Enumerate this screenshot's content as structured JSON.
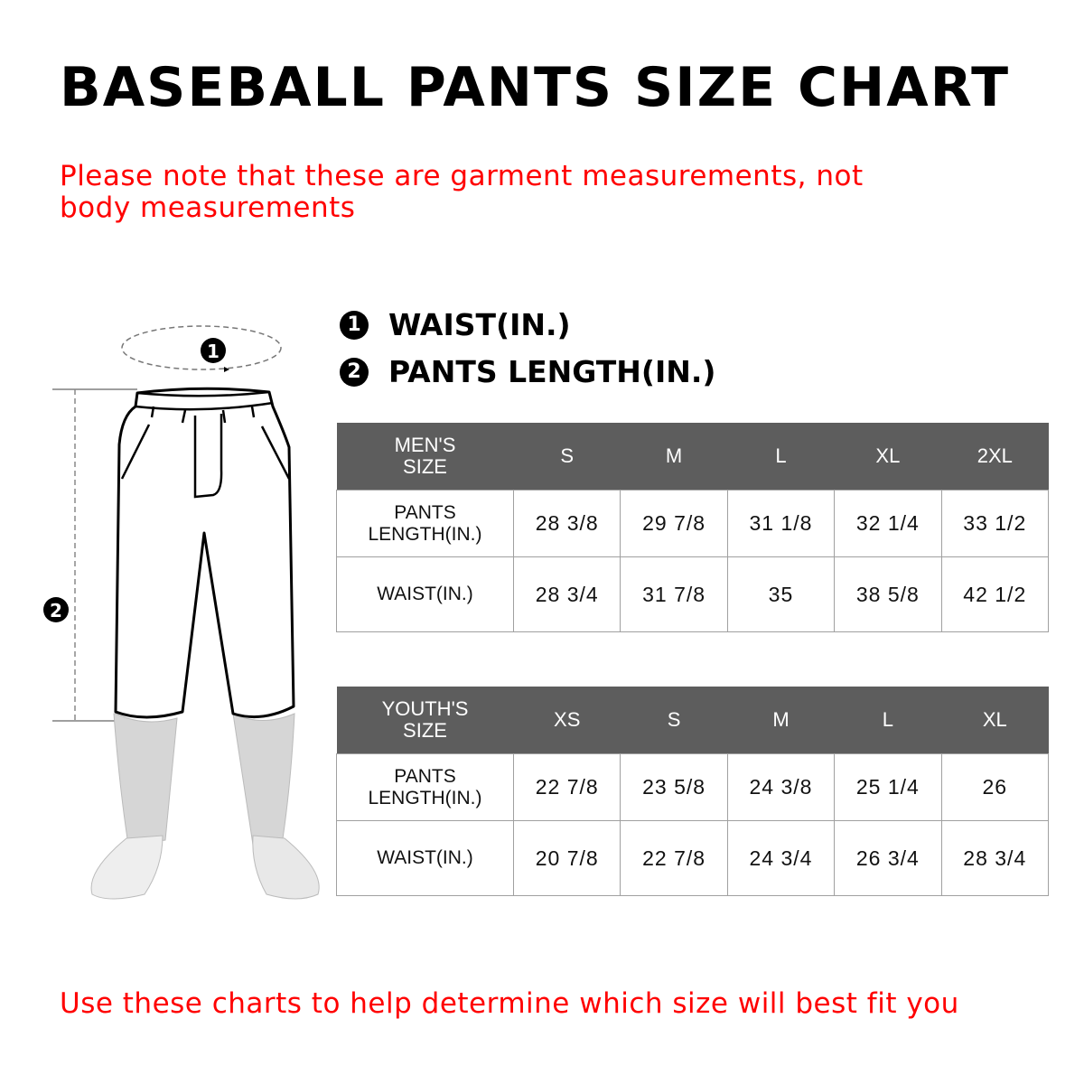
{
  "title": "BASEBALL PANTS SIZE CHART",
  "note_top": "Please note that these are garment measurements, not body measurements",
  "note_bottom": "Use these charts to help determine which size will best fit you",
  "legend": [
    {
      "number": "1",
      "label": "WAIST(IN.)"
    },
    {
      "number": "2",
      "label": "PANTS LENGTH(IN.)"
    }
  ],
  "diagram": {
    "marker_waist": "1",
    "marker_length": "2"
  },
  "mens_table": {
    "header": "MEN'S SIZE",
    "sizes": [
      "S",
      "M",
      "L",
      "XL",
      "2XL"
    ],
    "rows": [
      {
        "label": "PANTS LENGTH(IN.)",
        "values": [
          "28 3/8",
          "29 7/8",
          "31 1/8",
          "32 1/4",
          "33 1/2"
        ]
      },
      {
        "label": "WAIST(IN.)",
        "values": [
          "28 3/4",
          "31 7/8",
          "35",
          "38 5/8",
          "42 1/2"
        ]
      }
    ]
  },
  "youth_table": {
    "header": "YOUTH'S SIZE",
    "sizes": [
      "XS",
      "S",
      "M",
      "L",
      "XL"
    ],
    "rows": [
      {
        "label": "PANTS LENGTH(IN.)",
        "values": [
          "22 7/8",
          "23 5/8",
          "24 3/8",
          "25 1/4",
          "26"
        ]
      },
      {
        "label": "WAIST(IN.)",
        "values": [
          "20 7/8",
          "22 7/8",
          "24 3/4",
          "26 3/4",
          "28 3/4"
        ]
      }
    ]
  },
  "colors": {
    "accent_red": "#ff0000",
    "header_gray": "#5d5d5d"
  }
}
